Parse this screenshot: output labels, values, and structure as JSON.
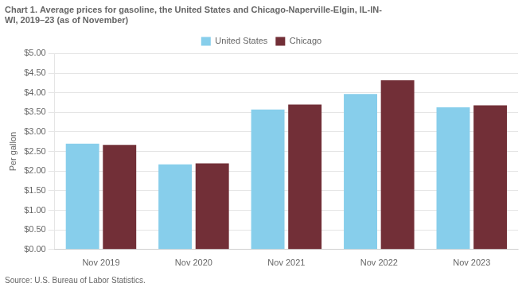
{
  "chart_data": {
    "type": "bar",
    "title": [
      "Chart 1. Average prices for gasoline, the United States and Chicago-Naperville-Elgin, IL-IN-",
      "WI, 2019–23 (as of November)"
    ],
    "ylabel": "Per gallon",
    "annotations": [
      "Source: U.S. Bureau of Labor Statistics."
    ],
    "categories": [
      "Nov 2019",
      "Nov 2020",
      "Nov 2021",
      "Nov 2022",
      "Nov 2023"
    ],
    "series": [
      {
        "name": "United States",
        "color": "#87CEEB",
        "values": [
          2.7,
          2.17,
          3.57,
          3.97,
          3.63
        ]
      },
      {
        "name": "Chicago",
        "color": "#722F37",
        "values": [
          2.67,
          2.2,
          3.7,
          4.32,
          3.68
        ]
      }
    ],
    "ylim": [
      0,
      5.0
    ],
    "yticks": [
      {
        "value": 0.0,
        "label": "$0.00"
      },
      {
        "value": 0.5,
        "label": "$0.50"
      },
      {
        "value": 1.0,
        "label": "$1.00"
      },
      {
        "value": 1.5,
        "label": "$1.50"
      },
      {
        "value": 2.0,
        "label": "$2.00"
      },
      {
        "value": 2.5,
        "label": "$2.50"
      },
      {
        "value": 3.0,
        "label": "$3.00"
      },
      {
        "value": 3.5,
        "label": "$3.50"
      },
      {
        "value": 4.0,
        "label": "$4.00"
      },
      {
        "value": 4.5,
        "label": "$4.50"
      },
      {
        "value": 5.0,
        "label": "$5.00"
      }
    ],
    "grid": true,
    "legend": "top"
  }
}
